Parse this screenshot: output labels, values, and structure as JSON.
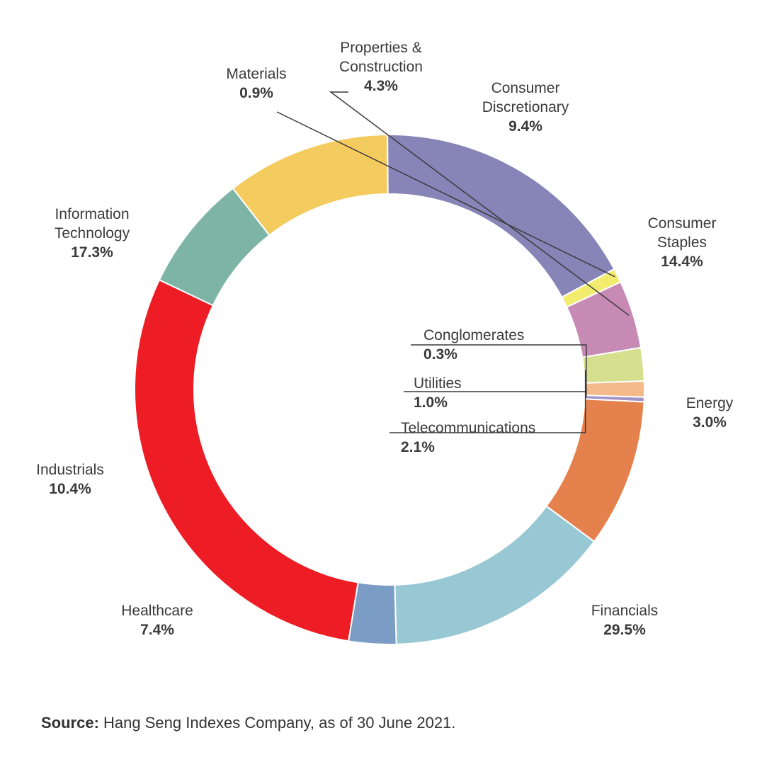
{
  "chart_data": {
    "type": "pie",
    "donut": true,
    "categories": [
      "Conglomerates",
      "Consumer Discretionary",
      "Consumer Staples",
      "Energy",
      "Financials",
      "Healthcare",
      "Industrials",
      "Information Technology",
      "Materials",
      "Properties & Construction",
      "Telecommunications",
      "Utilities"
    ],
    "values": [
      0.3,
      9.4,
      14.4,
      3.0,
      29.5,
      7.4,
      10.4,
      17.3,
      0.9,
      4.3,
      2.1,
      1.0
    ],
    "value_labels": [
      "0.3%",
      "9.4%",
      "14.4%",
      "3.0%",
      "29.5%",
      "7.4%",
      "10.4%",
      "17.3%",
      "0.9%",
      "4.3%",
      "2.1%",
      "1.0%"
    ],
    "colors": [
      "#a193c6",
      "#e5814c",
      "#97c8d4",
      "#7b9cc4",
      "#ee1c24",
      "#7db4a5",
      "#f4cb5f",
      "#8784b8",
      "#f2ec6e",
      "#c68ab5",
      "#d5df8d",
      "#f6b98a"
    ],
    "label_lines": [
      [
        "Conglomerates"
      ],
      [
        "Consumer",
        "Discretionary"
      ],
      [
        "Consumer",
        "Staples"
      ],
      [
        "Energy"
      ],
      [
        "Financials"
      ],
      [
        "Healthcare"
      ],
      [
        "Industrials"
      ],
      [
        "Information",
        "Technology"
      ],
      [
        "Materials"
      ],
      [
        "Properties &",
        "Construction"
      ],
      [
        "Telecommunications"
      ],
      [
        "Utilities"
      ]
    ]
  },
  "source": {
    "label": "Source:",
    "text": " Hang Seng Indexes Company, as of 30 June 2021."
  }
}
